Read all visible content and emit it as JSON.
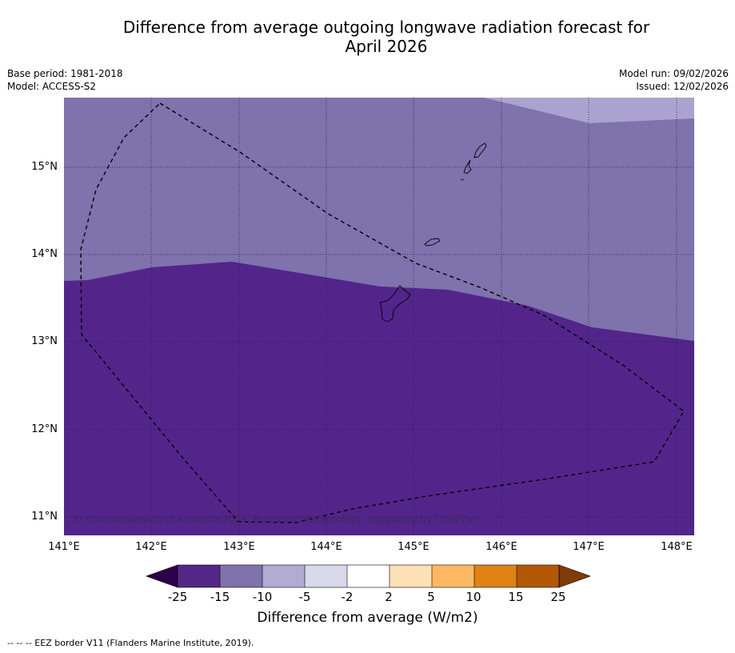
{
  "title": {
    "line1": "Difference from average outgoing longwave radiation forecast for",
    "line2": "April 2026"
  },
  "meta": {
    "base_period": "Base period: 1981-2018",
    "model": "Model: ACCESS-S2",
    "model_run": "Model run: 09/02/2026",
    "issued": "Issued: 12/02/2026"
  },
  "map": {
    "latitude_labels": [
      "15°N",
      "14°N",
      "13°N",
      "12°N",
      "11°N"
    ],
    "longitude_labels": [
      "141°E",
      "142°E",
      "143°E",
      "144°E",
      "145°E",
      "146°E",
      "147°E",
      "148°E"
    ],
    "copyright": "© Commonwealth of Australia 2026, Bureau of Meteorology, supported by COSPPac",
    "fill_colors": {
      "light": "#aba3cf",
      "medium": "#7f72ad",
      "dark": "#53258b"
    }
  },
  "colorbar": {
    "ticks": [
      "-25",
      "-15",
      "-10",
      "-5",
      "-2",
      "2",
      "5",
      "10",
      "15",
      "25"
    ],
    "colors": [
      "#2d004b",
      "#542788",
      "#8073ac",
      "#b2abd2",
      "#d8daeb",
      "#ffffff",
      "#fee0b6",
      "#fdb863",
      "#e08214",
      "#b35806",
      "#7f3b08"
    ],
    "label": "Difference from average (W/m2)"
  },
  "footnote": "--  --  -- EEZ border V11 (Flanders Marine Institute, 2019)."
}
